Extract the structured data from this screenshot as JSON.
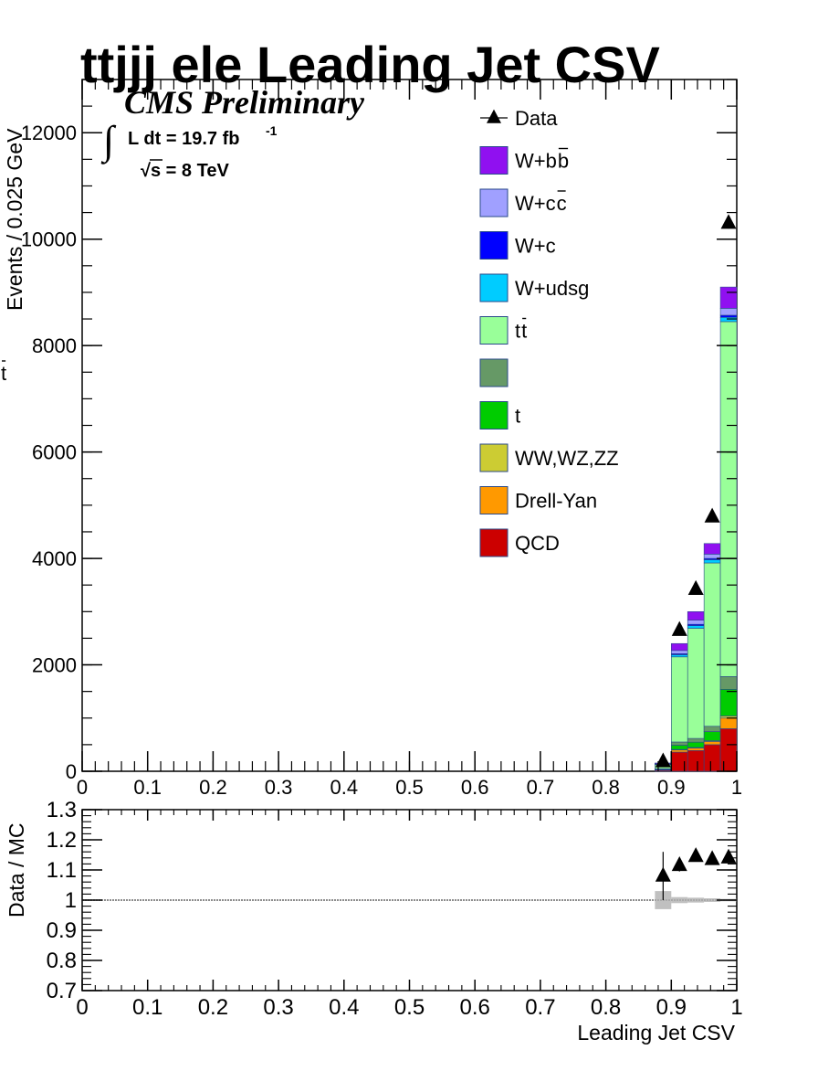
{
  "title": "ttjjj ele Leading Jet CSV",
  "cms_label": "CMS Preliminary",
  "lumi_label": "L dt = 19.7 fb",
  "lumi_exp": "-1",
  "energy_label": "s = 8 TeV",
  "colors": {
    "Data": "#000000",
    "W+bb": "#9010f0",
    "W+cc": "#a0a0ff",
    "W+c": "#0000ff",
    "W+udsg": "#00ccff",
    "ttbar": "#99ff99",
    "tbar": "#669966",
    "t": "#00cc00",
    "VV": "#cccc33",
    "Drell-Yan": "#ff9900",
    "QCD": "#cc0000"
  },
  "legend": [
    {
      "key": "Data",
      "label": "Data",
      "style": "marker"
    },
    {
      "key": "W+bb",
      "label": "W+b",
      "bar": "b",
      "style": "box"
    },
    {
      "key": "W+cc",
      "label": "W+c",
      "bar": "c",
      "style": "box"
    },
    {
      "key": "W+c",
      "label": "W+c",
      "bar": "",
      "style": "box"
    },
    {
      "key": "W+udsg",
      "label": "W+udsg",
      "bar": "",
      "style": "box"
    },
    {
      "key": "ttbar",
      "label": "t",
      "bar": "t",
      "style": "box"
    },
    {
      "key": "tbar",
      "label": "",
      "bar": "t",
      "style": "box"
    },
    {
      "key": "t",
      "label": "t",
      "bar": "",
      "style": "box"
    },
    {
      "key": "VV",
      "label": "WW,WZ,ZZ",
      "bar": "",
      "style": "box"
    },
    {
      "key": "Drell-Yan",
      "label": "Drell-Yan",
      "bar": "",
      "style": "box"
    },
    {
      "key": "QCD",
      "label": "QCD",
      "bar": "",
      "style": "box"
    }
  ],
  "chart_data": [
    {
      "type": "bar",
      "stacked": true,
      "xlabel": "Leading Jet CSV",
      "ylabel": "Events / 0.025 GeV",
      "xlim": [
        0,
        1
      ],
      "ylim": [
        0,
        13000
      ],
      "x_ticks": [
        "0",
        "0.1",
        "0.2",
        "0.3",
        "0.4",
        "0.5",
        "0.6",
        "0.7",
        "0.8",
        "0.9",
        "1"
      ],
      "y_ticks": [
        "0",
        "2000",
        "4000",
        "6000",
        "8000",
        "10000",
        "12000"
      ],
      "bins": [
        {
          "lo": 0.875,
          "hi": 0.9,
          "data": 180,
          "stack": {
            "QCD": 20,
            "Drell-Yan": 10,
            "VV": 2,
            "t": 10,
            "tbar": 5,
            "ttbar": 80,
            "W+udsg": 5,
            "W+c": 3,
            "W+cc": 5,
            "W+bb": 15
          }
        },
        {
          "lo": 0.9,
          "hi": 0.925,
          "data": 2650,
          "stack": {
            "QCD": 360,
            "Drell-Yan": 40,
            "VV": 10,
            "t": 80,
            "tbar": 60,
            "ttbar": 1600,
            "W+udsg": 40,
            "W+c": 20,
            "W+cc": 60,
            "W+bb": 130
          }
        },
        {
          "lo": 0.925,
          "hi": 0.95,
          "data": 3420,
          "stack": {
            "QCD": 390,
            "Drell-Yan": 45,
            "VV": 12,
            "t": 100,
            "tbar": 70,
            "ttbar": 2070,
            "W+udsg": 50,
            "W+c": 25,
            "W+cc": 78,
            "W+bb": 160
          }
        },
        {
          "lo": 0.95,
          "hi": 0.975,
          "data": 4780,
          "stack": {
            "QCD": 500,
            "Drell-Yan": 60,
            "VV": 15,
            "t": 170,
            "tbar": 100,
            "ttbar": 3070,
            "W+udsg": 60,
            "W+c": 25,
            "W+cc": 80,
            "W+bb": 200
          }
        },
        {
          "lo": 0.975,
          "hi": 1.0,
          "data": 10300,
          "stack": {
            "QCD": 800,
            "Drell-Yan": 200,
            "VV": 40,
            "t": 500,
            "tbar": 240,
            "ttbar": 6670,
            "W+udsg": 80,
            "W+c": 40,
            "W+cc": 130,
            "W+bb": 400
          }
        }
      ]
    },
    {
      "type": "scatter",
      "xlabel": "Leading Jet CSV",
      "ylabel": "Data / MC",
      "xlim": [
        0,
        1
      ],
      "ylim": [
        0.7,
        1.3
      ],
      "x_ticks": [
        "0",
        "0.1",
        "0.2",
        "0.3",
        "0.4",
        "0.5",
        "0.6",
        "0.7",
        "0.8",
        "0.9",
        "1"
      ],
      "y_ticks": [
        "0.7",
        "0.8",
        "0.9",
        "1",
        "1.1",
        "1.2",
        "1.3"
      ],
      "reference_line": 1.0,
      "x": [
        0.8875,
        0.9125,
        0.9375,
        0.9625,
        0.9875
      ],
      "y": [
        1.08,
        1.115,
        1.145,
        1.135,
        1.14
      ],
      "y_err": [
        0.08,
        0.02,
        0.012,
        0.01,
        0.006
      ],
      "mc_unc": [
        0.03,
        0.01,
        0.008,
        0.006,
        0.004
      ]
    }
  ]
}
